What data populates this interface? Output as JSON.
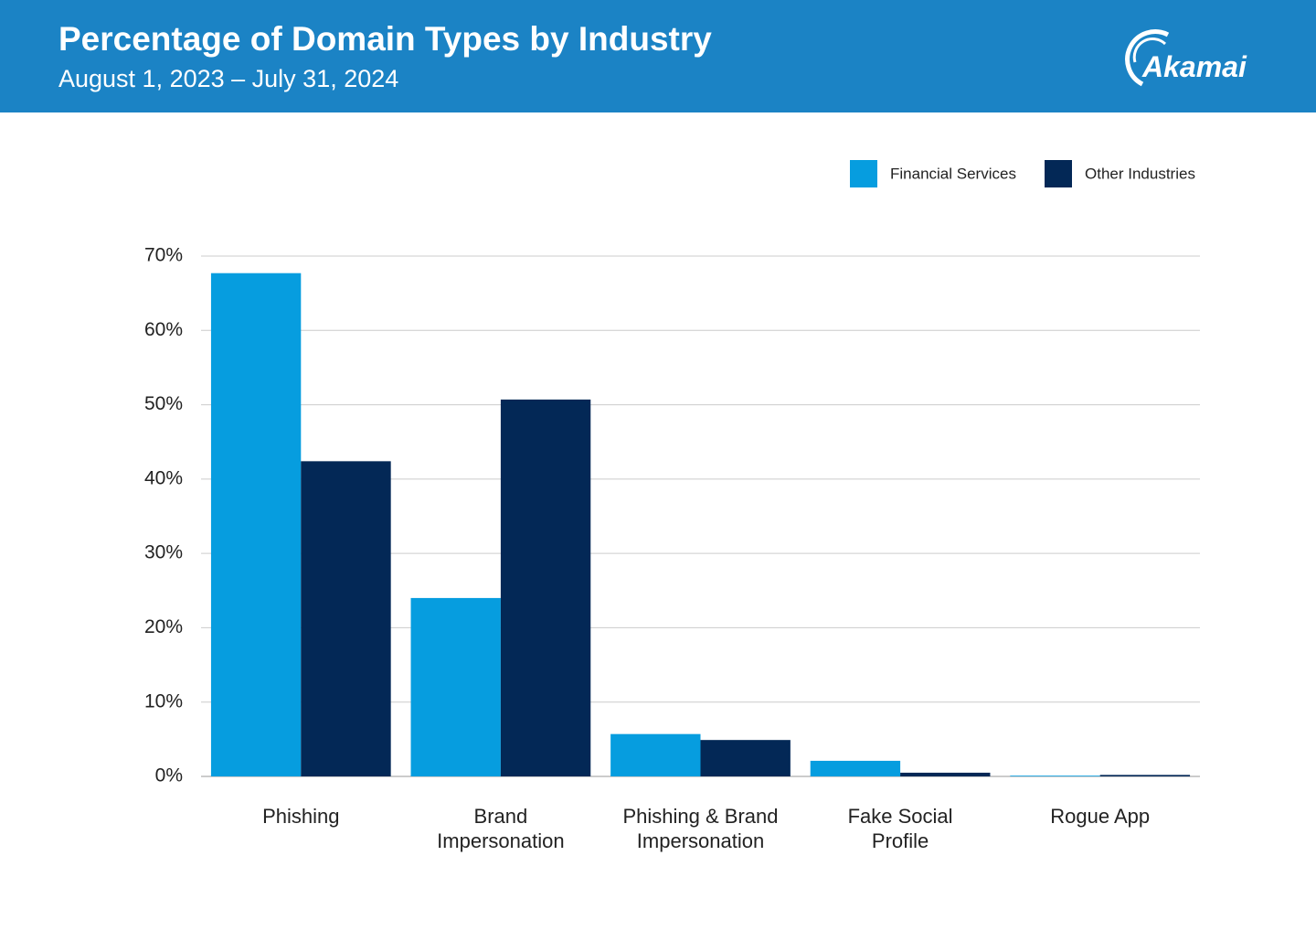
{
  "header": {
    "logo": "Akamai"
  },
  "chart_data": {
    "type": "bar",
    "title": "Percentage of Domain Types by Industry",
    "subtitle": "August 1, 2023 – July 31, 2024",
    "categories": [
      "Phishing",
      "Brand\nImpersonation",
      "Phishing & Brand\nImpersonation",
      "Fake Social\nProfile",
      "Rogue App"
    ],
    "series": [
      {
        "name": "Financial Services",
        "color": "#069ddf",
        "values": [
          67.7,
          24.0,
          5.7,
          2.1,
          0.1
        ]
      },
      {
        "name": "Other Industries",
        "color": "#032856",
        "values": [
          42.4,
          50.7,
          4.9,
          0.5,
          0.2
        ]
      }
    ],
    "ylim": [
      0,
      70
    ],
    "yticks": [
      {
        "value": 0,
        "label": "0%"
      },
      {
        "value": 10,
        "label": "10%"
      },
      {
        "value": 20,
        "label": "20%"
      },
      {
        "value": 30,
        "label": "30%"
      },
      {
        "value": 40,
        "label": "40%"
      },
      {
        "value": 50,
        "label": "50%"
      },
      {
        "value": 60,
        "label": "60%"
      },
      {
        "value": 70,
        "label": "70%"
      }
    ],
    "grid": true,
    "legend": "top-right"
  }
}
